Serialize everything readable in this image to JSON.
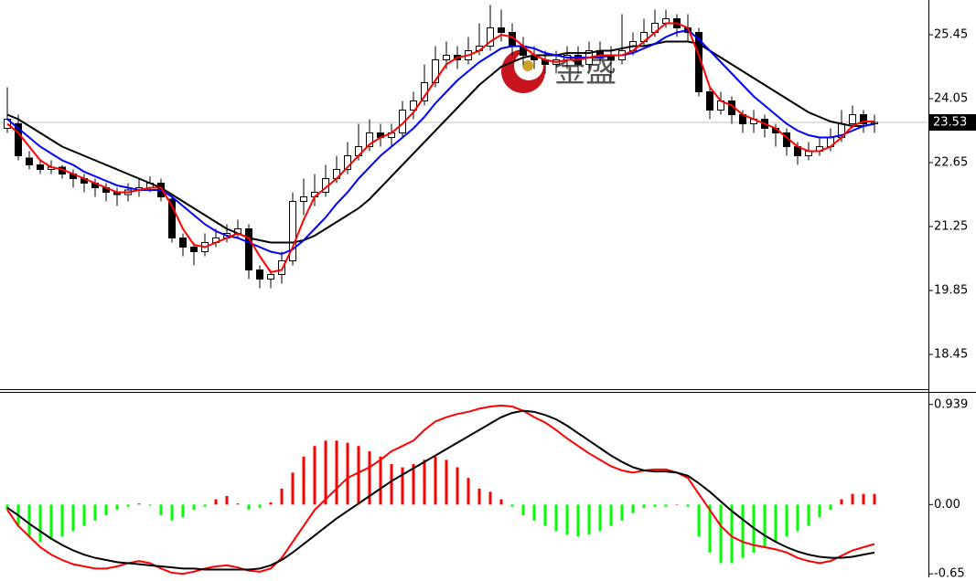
{
  "chart_data": [
    {
      "type": "candlestick",
      "watermark": "金盛",
      "up_color": "#ffffff",
      "down_color": "#000000",
      "outline_color": "#000000",
      "ylim": [
        17.71,
        26.21
      ],
      "yticks": [
        25.45,
        24.05,
        22.65,
        21.25,
        19.85,
        18.45
      ],
      "last_price": 23.53,
      "open": [
        23.4,
        23.5,
        22.75,
        22.6,
        22.5,
        22.55,
        22.4,
        22.3,
        22.2,
        22.1,
        22.0,
        21.95,
        22.05,
        22.1,
        22.2,
        21.85,
        21.0,
        20.8,
        20.7,
        20.9,
        21.0,
        21.1,
        21.2,
        20.3,
        20.1,
        20.2,
        20.5,
        21.8,
        21.9,
        22.0,
        22.3,
        22.5,
        22.8,
        23.0,
        23.3,
        23.2,
        23.3,
        23.8,
        24.0,
        24.4,
        24.9,
        25.0,
        24.9,
        25.1,
        25.2,
        25.6,
        25.5,
        25.2,
        25.0,
        24.9,
        24.8,
        24.9,
        25.0,
        24.8,
        25.1,
        25.0,
        24.9,
        25.1,
        25.3,
        25.5,
        25.7,
        25.8,
        25.6,
        25.5,
        24.2,
        23.8,
        24.0,
        23.7,
        23.5,
        23.6,
        23.4,
        23.3,
        23.0,
        22.8,
        22.9,
        23.0,
        23.2,
        23.5,
        23.7,
        23.5
      ],
      "high": [
        24.3,
        23.7,
        22.9,
        22.7,
        22.7,
        22.6,
        22.5,
        22.4,
        22.3,
        22.2,
        22.1,
        22.2,
        22.3,
        22.35,
        22.3,
        21.9,
        21.1,
        20.9,
        21.1,
        21.2,
        21.3,
        21.4,
        21.3,
        20.4,
        20.3,
        20.7,
        22.0,
        22.3,
        22.4,
        22.6,
        22.8,
        23.1,
        23.5,
        23.6,
        23.5,
        23.5,
        24.0,
        24.2,
        24.8,
        25.2,
        25.3,
        25.2,
        25.4,
        25.7,
        26.1,
        26.0,
        25.7,
        25.4,
        25.2,
        25.1,
        25.1,
        25.2,
        25.2,
        25.3,
        25.3,
        25.2,
        25.9,
        25.5,
        25.8,
        26.0,
        26.0,
        25.9,
        25.9,
        25.6,
        24.3,
        24.2,
        24.1,
        23.8,
        23.8,
        23.7,
        23.5,
        23.4,
        23.1,
        23.1,
        23.2,
        23.4,
        23.8,
        23.9,
        23.8,
        23.7
      ],
      "low": [
        23.3,
        22.7,
        22.5,
        22.4,
        22.4,
        22.3,
        22.1,
        22.0,
        21.9,
        21.8,
        21.7,
        21.8,
        21.9,
        22.0,
        21.8,
        20.9,
        20.6,
        20.4,
        20.6,
        20.8,
        20.9,
        21.0,
        20.1,
        19.9,
        19.9,
        20.0,
        20.4,
        21.5,
        21.7,
        21.9,
        22.2,
        22.4,
        22.7,
        22.9,
        23.0,
        23.0,
        23.2,
        23.6,
        23.9,
        24.3,
        24.7,
        24.7,
        24.8,
        25.0,
        25.1,
        25.3,
        25.0,
        24.8,
        24.7,
        24.6,
        24.6,
        24.7,
        24.6,
        24.7,
        24.8,
        24.5,
        24.8,
        25.0,
        25.2,
        25.4,
        25.6,
        25.4,
        25.3,
        24.1,
        23.6,
        23.7,
        23.5,
        23.3,
        23.3,
        23.2,
        23.0,
        22.8,
        22.6,
        22.7,
        22.8,
        22.9,
        23.1,
        23.4,
        23.3,
        23.3
      ],
      "close": [
        23.6,
        22.8,
        22.6,
        22.5,
        22.55,
        22.4,
        22.3,
        22.2,
        22.1,
        22.0,
        21.95,
        22.05,
        22.1,
        22.2,
        21.9,
        21.0,
        20.8,
        20.7,
        20.9,
        21.0,
        21.1,
        21.2,
        20.3,
        20.1,
        20.2,
        20.5,
        21.8,
        21.9,
        22.0,
        22.3,
        22.5,
        22.8,
        23.0,
        23.3,
        23.2,
        23.3,
        23.8,
        24.0,
        24.4,
        24.9,
        25.0,
        24.9,
        25.1,
        25.2,
        25.6,
        25.5,
        25.2,
        25.0,
        24.9,
        24.8,
        24.9,
        25.0,
        24.8,
        25.1,
        25.0,
        24.9,
        25.1,
        25.3,
        25.5,
        25.7,
        25.8,
        25.6,
        25.5,
        24.2,
        23.8,
        24.0,
        23.7,
        23.5,
        23.6,
        23.4,
        23.3,
        23.0,
        22.8,
        22.9,
        23.0,
        23.2,
        23.5,
        23.7,
        23.5,
        23.53
      ],
      "series": [
        {
          "color": "#000000",
          "values": [
            23.7,
            23.6,
            23.45,
            23.3,
            23.15,
            23.0,
            22.9,
            22.8,
            22.7,
            22.6,
            22.5,
            22.4,
            22.3,
            22.2,
            22.1,
            21.95,
            21.8,
            21.65,
            21.5,
            21.35,
            21.2,
            21.1,
            21.0,
            20.95,
            20.9,
            20.9,
            20.9,
            20.95,
            21.05,
            21.2,
            21.35,
            21.5,
            21.65,
            21.85,
            22.1,
            22.35,
            22.6,
            22.85,
            23.1,
            23.35,
            23.6,
            23.85,
            24.1,
            24.35,
            24.55,
            24.75,
            24.85,
            24.95,
            25.0,
            25.0,
            25.0,
            25.05,
            25.05,
            25.05,
            25.1,
            25.1,
            25.15,
            25.2,
            25.2,
            25.25,
            25.3,
            25.3,
            25.3,
            25.25,
            25.1,
            24.95,
            24.8,
            24.65,
            24.5,
            24.35,
            24.2,
            24.05,
            23.9,
            23.75,
            23.65,
            23.55,
            23.5,
            23.45,
            23.45,
            23.5
          ]
        },
        {
          "color": "#0000ff",
          "values": [
            23.6,
            23.4,
            23.2,
            23.0,
            22.85,
            22.7,
            22.6,
            22.45,
            22.35,
            22.25,
            22.15,
            22.1,
            22.05,
            22.05,
            22.05,
            21.9,
            21.7,
            21.5,
            21.3,
            21.15,
            21.05,
            21.0,
            20.9,
            20.8,
            20.7,
            20.65,
            20.75,
            20.95,
            21.2,
            21.45,
            21.75,
            22.0,
            22.3,
            22.55,
            22.8,
            23.0,
            23.2,
            23.4,
            23.65,
            23.95,
            24.2,
            24.45,
            24.65,
            24.85,
            25.0,
            25.15,
            25.2,
            25.2,
            25.15,
            25.05,
            25.0,
            24.95,
            24.95,
            24.95,
            24.95,
            25.0,
            25.0,
            25.05,
            25.15,
            25.25,
            25.4,
            25.5,
            25.55,
            25.35,
            25.1,
            24.85,
            24.6,
            24.35,
            24.1,
            23.9,
            23.7,
            23.5,
            23.35,
            23.25,
            23.2,
            23.2,
            23.25,
            23.35,
            23.45,
            23.5
          ]
        },
        {
          "color": "#ff0000",
          "values": [
            23.5,
            23.3,
            23.0,
            22.7,
            22.55,
            22.5,
            22.4,
            22.3,
            22.2,
            22.1,
            22.0,
            22.0,
            22.05,
            22.1,
            22.1,
            21.7,
            21.2,
            20.85,
            20.8,
            20.9,
            21.0,
            21.1,
            21.0,
            20.6,
            20.25,
            20.3,
            20.8,
            21.4,
            21.9,
            22.1,
            22.3,
            22.55,
            22.8,
            23.05,
            23.2,
            23.3,
            23.5,
            23.75,
            24.1,
            24.45,
            24.8,
            24.95,
            25.0,
            25.1,
            25.3,
            25.45,
            25.4,
            25.2,
            25.0,
            24.9,
            24.85,
            24.9,
            24.9,
            24.95,
            25.0,
            25.0,
            25.0,
            25.1,
            25.3,
            25.5,
            25.7,
            25.7,
            25.6,
            25.0,
            24.3,
            24.0,
            23.9,
            23.7,
            23.6,
            23.5,
            23.4,
            23.2,
            23.0,
            22.9,
            22.9,
            23.0,
            23.2,
            23.45,
            23.55,
            23.55
          ]
        }
      ]
    },
    {
      "type": "macd",
      "up_color": "#ff0000",
      "down_color": "#00ff00",
      "ylim": [
        -0.7,
        1.04
      ],
      "yticks": [
        0.939,
        {
          "value": 0,
          "label": "0.00"
        },
        -0.65
      ],
      "values": [
        -0.05,
        -0.2,
        -0.3,
        -0.35,
        -0.33,
        -0.3,
        -0.25,
        -0.2,
        -0.15,
        -0.1,
        -0.05,
        -0.02,
        0.01,
        -0.01,
        -0.1,
        -0.15,
        -0.12,
        -0.05,
        -0.02,
        0.05,
        0.08,
        0.01,
        -0.05,
        -0.03,
        0.02,
        0.15,
        0.3,
        0.45,
        0.55,
        0.6,
        0.6,
        0.58,
        0.55,
        0.5,
        0.45,
        0.38,
        0.35,
        0.38,
        0.42,
        0.45,
        0.42,
        0.35,
        0.25,
        0.15,
        0.12,
        0.05,
        -0.02,
        -0.1,
        -0.15,
        -0.2,
        -0.25,
        -0.28,
        -0.3,
        -0.28,
        -0.25,
        -0.2,
        -0.15,
        -0.08,
        -0.03,
        -0.02,
        -0.02,
        0.0,
        -0.02,
        -0.3,
        -0.45,
        -0.55,
        -0.55,
        -0.5,
        -0.45,
        -0.4,
        -0.35,
        -0.3,
        -0.25,
        -0.2,
        -0.12,
        -0.05,
        0.05,
        0.1,
        0.1,
        0.1
      ],
      "series": [
        {
          "color": "#ff0000",
          "values": [
            -0.05,
            -0.2,
            -0.3,
            -0.4,
            -0.47,
            -0.52,
            -0.56,
            -0.58,
            -0.6,
            -0.6,
            -0.58,
            -0.55,
            -0.53,
            -0.55,
            -0.6,
            -0.64,
            -0.65,
            -0.63,
            -0.6,
            -0.58,
            -0.57,
            -0.59,
            -0.62,
            -0.63,
            -0.6,
            -0.5,
            -0.35,
            -0.2,
            -0.05,
            0.05,
            0.15,
            0.25,
            0.3,
            0.35,
            0.42,
            0.5,
            0.55,
            0.6,
            0.7,
            0.78,
            0.82,
            0.85,
            0.87,
            0.9,
            0.92,
            0.93,
            0.92,
            0.88,
            0.82,
            0.77,
            0.7,
            0.62,
            0.55,
            0.48,
            0.42,
            0.36,
            0.32,
            0.3,
            0.32,
            0.33,
            0.33,
            0.3,
            0.25,
            0.1,
            -0.05,
            -0.2,
            -0.3,
            -0.35,
            -0.38,
            -0.4,
            -0.42,
            -0.45,
            -0.5,
            -0.53,
            -0.55,
            -0.53,
            -0.48,
            -0.43,
            -0.4,
            -0.37
          ]
        },
        {
          "color": "#000000",
          "values": [
            -0.03,
            -0.1,
            -0.18,
            -0.25,
            -0.32,
            -0.38,
            -0.43,
            -0.47,
            -0.5,
            -0.52,
            -0.54,
            -0.55,
            -0.56,
            -0.57,
            -0.58,
            -0.59,
            -0.6,
            -0.6,
            -0.61,
            -0.61,
            -0.61,
            -0.61,
            -0.61,
            -0.6,
            -0.57,
            -0.52,
            -0.45,
            -0.37,
            -0.29,
            -0.21,
            -0.13,
            -0.06,
            0.01,
            0.08,
            0.15,
            0.22,
            0.28,
            0.34,
            0.4,
            0.46,
            0.52,
            0.58,
            0.64,
            0.7,
            0.76,
            0.82,
            0.86,
            0.88,
            0.87,
            0.84,
            0.8,
            0.74,
            0.67,
            0.6,
            0.53,
            0.46,
            0.4,
            0.35,
            0.32,
            0.31,
            0.31,
            0.3,
            0.27,
            0.2,
            0.12,
            0.03,
            -0.06,
            -0.14,
            -0.22,
            -0.29,
            -0.35,
            -0.4,
            -0.44,
            -0.47,
            -0.49,
            -0.5,
            -0.5,
            -0.49,
            -0.47,
            -0.45
          ]
        }
      ]
    }
  ]
}
